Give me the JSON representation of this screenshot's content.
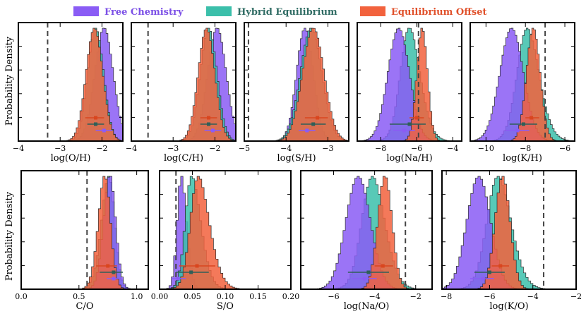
{
  "colors": {
    "free": "#8a5cf5",
    "hybrid": "#3bbfaa",
    "offset": "#f2623d",
    "hybrid_point": "#2f5f58",
    "dashed": "#444444"
  },
  "legend": [
    {
      "key": "free",
      "label": "Free Chemistry",
      "text_color": "#7b4fe6"
    },
    {
      "key": "hybrid",
      "label": "Hybrid Equilibrium",
      "text_color": "#2f6b63"
    },
    {
      "key": "offset",
      "label": "Equilibrium Offset",
      "text_color": "#e0502a"
    }
  ],
  "ylabel": "Probability Density",
  "chart_data": [
    {
      "type": "histogram",
      "name": "logOH",
      "xlabel": "log(O/H)",
      "xlim": [
        -4,
        -1.5
      ],
      "ticks": [
        -4,
        -3,
        -2
      ],
      "tick_labels": [
        "−4",
        "−3",
        "−2"
      ],
      "dashed": -3.3,
      "series": [
        {
          "key": "free",
          "mean": -1.95,
          "sd": 0.22,
          "skew": 0
        },
        {
          "key": "hybrid",
          "mean": -2.15,
          "sd": 0.19,
          "skew": 0
        },
        {
          "key": "offset",
          "mean": -2.18,
          "sd": 0.2,
          "skew": 0
        }
      ],
      "points": [
        {
          "key": "offset",
          "x": -2.15,
          "lo": -2.4,
          "hi": -1.95
        },
        {
          "key": "hybrid",
          "x": -2.15,
          "lo": -2.35,
          "hi": -1.95
        },
        {
          "key": "free",
          "x": -1.95,
          "lo": -2.15,
          "hi": -1.75
        }
      ]
    },
    {
      "type": "histogram",
      "name": "logCH",
      "xlabel": "log(C/H)",
      "xlim": [
        -4,
        -1.5
      ],
      "ticks": [
        -4,
        -3,
        -2
      ],
      "tick_labels": [
        "−4",
        "−3",
        "−2"
      ],
      "dashed": -3.6,
      "series": [
        {
          "key": "free",
          "mean": -1.95,
          "sd": 0.22,
          "skew": 0
        },
        {
          "key": "hybrid",
          "mean": -2.15,
          "sd": 0.2,
          "skew": 0
        },
        {
          "key": "offset",
          "mean": -2.2,
          "sd": 0.2,
          "skew": 0
        }
      ],
      "points": [
        {
          "key": "offset",
          "x": -2.15,
          "lo": -2.35,
          "hi": -1.95
        },
        {
          "key": "hybrid",
          "x": -2.15,
          "lo": -2.35,
          "hi": -1.95
        },
        {
          "key": "free",
          "x": -2.05,
          "lo": -2.25,
          "hi": -1.85
        }
      ]
    },
    {
      "type": "histogram",
      "name": "logSH",
      "xlabel": "log(S/H)",
      "xlim": [
        -5,
        -2.5
      ],
      "ticks": [
        -5,
        -4,
        -3
      ],
      "tick_labels": [
        "−5",
        "−4",
        "−3"
      ],
      "dashed": -4.9,
      "series": [
        {
          "key": "free",
          "mean": -3.55,
          "sd": 0.2,
          "skew": 0
        },
        {
          "key": "hybrid",
          "mean": -3.4,
          "sd": 0.26,
          "skew": 0
        },
        {
          "key": "offset",
          "mean": -3.35,
          "sd": 0.26,
          "skew": 0
        }
      ],
      "points": [
        {
          "key": "offset",
          "x": -3.25,
          "lo": -3.55,
          "hi": -3.0
        },
        {
          "key": "hybrid",
          "x": -3.35,
          "lo": -3.65,
          "hi": -3.05
        },
        {
          "key": "free",
          "x": -3.5,
          "lo": -3.7,
          "hi": -3.3
        }
      ]
    },
    {
      "type": "histogram",
      "name": "logNaH",
      "xlabel": "log(Na/H)",
      "xlim": [
        -9.3,
        -3.5
      ],
      "ticks": [
        -8,
        -6,
        -4
      ],
      "tick_labels": [
        "−8",
        "−6",
        "−4"
      ],
      "dashed": -5.9,
      "series": [
        {
          "key": "hybrid",
          "mean": -6.8,
          "sd": 0.75,
          "skew": 1.4
        },
        {
          "key": "free",
          "mean": -7.0,
          "sd": 0.6,
          "skew": 0
        },
        {
          "key": "offset",
          "mean": -5.7,
          "sd": 0.3,
          "skew": 0
        }
      ],
      "points": [
        {
          "key": "offset",
          "x": -6.0,
          "lo": -6.4,
          "hi": -5.6
        },
        {
          "key": "hybrid",
          "x": -6.4,
          "lo": -7.5,
          "hi": -5.5
        },
        {
          "key": "free",
          "x": -6.7,
          "lo": -7.3,
          "hi": -6.1
        }
      ]
    },
    {
      "type": "histogram",
      "name": "logKH",
      "xlabel": "log(K/H)",
      "xlim": [
        -10.8,
        -5.5
      ],
      "ticks": [
        -10,
        -8,
        -6
      ],
      "tick_labels": [
        "−10",
        "−8",
        "−6"
      ],
      "dashed": -7.0,
      "series": [
        {
          "key": "hybrid",
          "mean": -8.3,
          "sd": 0.75,
          "skew": 1.3
        },
        {
          "key": "free",
          "mean": -8.7,
          "sd": 0.6,
          "skew": 0
        },
        {
          "key": "offset",
          "mean": -7.6,
          "sd": 0.35,
          "skew": 0
        }
      ],
      "points": [
        {
          "key": "offset",
          "x": -7.7,
          "lo": -8.0,
          "hi": -7.3
        },
        {
          "key": "hybrid",
          "x": -8.1,
          "lo": -8.8,
          "hi": -7.4
        },
        {
          "key": "free",
          "x": -8.4,
          "lo": -9.0,
          "hi": -7.8
        }
      ]
    },
    {
      "type": "histogram",
      "name": "CO",
      "xlabel": "C/O",
      "xlim": [
        0,
        1.1
      ],
      "ticks": [
        0,
        0.5,
        1.0
      ],
      "tick_labels": [
        "0.0",
        "0.5",
        "1.0"
      ],
      "dashed": 0.57,
      "series": [
        {
          "key": "hybrid",
          "mean": 0.8,
          "sd": 0.08,
          "skew": -1.5
        },
        {
          "key": "free",
          "mean": 0.8,
          "sd": 0.065,
          "skew": -1.0
        },
        {
          "key": "offset",
          "mean": 0.76,
          "sd": 0.07,
          "skew": -1.2
        }
      ],
      "points": [
        {
          "key": "offset",
          "x": 0.75,
          "lo": 0.65,
          "hi": 0.83
        },
        {
          "key": "hybrid",
          "x": 0.8,
          "lo": 0.68,
          "hi": 0.88
        },
        {
          "key": "free",
          "x": 0.8,
          "lo": 0.74,
          "hi": 0.86
        }
      ]
    },
    {
      "type": "histogram",
      "name": "SO",
      "xlabel": "S/O",
      "xlim": [
        0,
        0.2
      ],
      "ticks": [
        0,
        0.05,
        0.1,
        0.15,
        0.2
      ],
      "tick_labels": [
        "0.00",
        "0.05",
        "0.10",
        "0.15",
        "0.20"
      ],
      "dashed": 0.025,
      "series": [
        {
          "key": "free",
          "mean": 0.028,
          "sd": 0.01,
          "skew": 1.5
        },
        {
          "key": "hybrid",
          "mean": 0.04,
          "sd": 0.018,
          "skew": 2.0
        },
        {
          "key": "offset",
          "mean": 0.048,
          "sd": 0.022,
          "skew": 2.0
        }
      ],
      "points": [
        {
          "key": "offset",
          "x": 0.057,
          "lo": 0.03,
          "hi": 0.085
        },
        {
          "key": "hybrid",
          "x": 0.048,
          "lo": 0.025,
          "hi": 0.075
        },
        {
          "key": "free",
          "x": 0.028,
          "lo": 0.018,
          "hi": 0.04
        }
      ]
    },
    {
      "type": "histogram",
      "name": "logNaO",
      "xlabel": "log(Na/O)",
      "xlim": [
        -7.6,
        -1.2
      ],
      "ticks": [
        -6,
        -4,
        -2
      ],
      "tick_labels": [
        "−6",
        "−4",
        "−2"
      ],
      "dashed": -2.5,
      "series": [
        {
          "key": "hybrid",
          "mean": -4.5,
          "sd": 0.75,
          "skew": 1.3
        },
        {
          "key": "free",
          "mean": -4.8,
          "sd": 0.6,
          "skew": 0
        },
        {
          "key": "offset",
          "mean": -3.5,
          "sd": 0.35,
          "skew": 0
        }
      ],
      "points": [
        {
          "key": "offset",
          "x": -3.6,
          "lo": -4.0,
          "hi": -3.1
        },
        {
          "key": "hybrid",
          "x": -4.3,
          "lo": -5.3,
          "hi": -3.3
        },
        {
          "key": "free",
          "x": -4.5,
          "lo": -5.1,
          "hi": -3.9
        }
      ]
    },
    {
      "type": "histogram",
      "name": "logKO",
      "xlabel": "log(K/O)",
      "xlim": [
        -8.2,
        -2
      ],
      "ticks": [
        -8,
        -6,
        -4,
        -2
      ],
      "tick_labels": [
        "−8",
        "−6",
        "−4",
        "−2"
      ],
      "dashed": -3.5,
      "series": [
        {
          "key": "hybrid",
          "mean": -6.0,
          "sd": 0.75,
          "skew": 1.3
        },
        {
          "key": "free",
          "mean": -6.5,
          "sd": 0.55,
          "skew": 0
        },
        {
          "key": "offset",
          "mean": -5.4,
          "sd": 0.35,
          "skew": 0
        }
      ],
      "points": [
        {
          "key": "offset",
          "x": -5.5,
          "lo": -5.9,
          "hi": -5.1
        },
        {
          "key": "hybrid",
          "x": -6.0,
          "lo": -6.7,
          "hi": -5.3
        },
        {
          "key": "free",
          "x": -6.3,
          "lo": -6.9,
          "hi": -5.8
        }
      ]
    }
  ]
}
